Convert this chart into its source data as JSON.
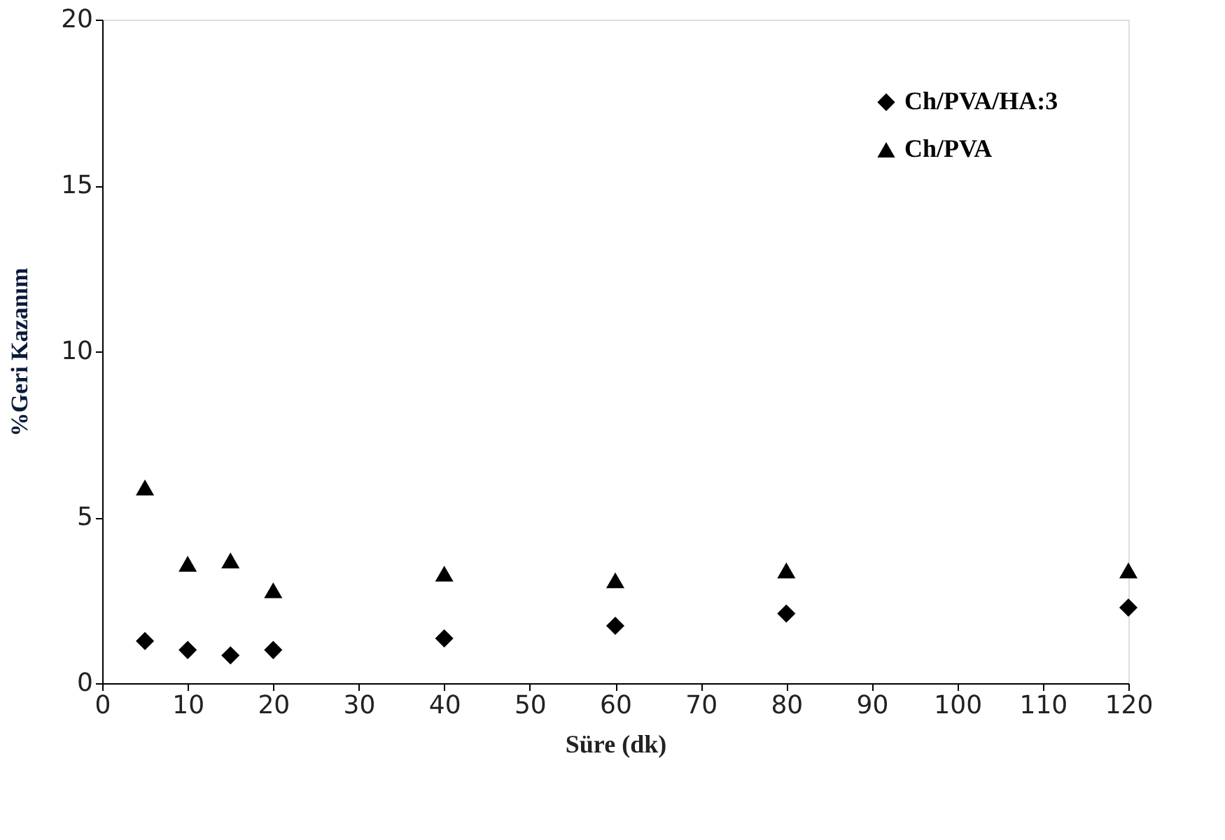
{
  "chart_data": {
    "type": "scatter",
    "xlabel": "Süre (dk)",
    "ylabel": "%Geri Kazanım",
    "x": [
      5,
      10,
      15,
      20,
      40,
      60,
      80,
      120
    ],
    "series": [
      {
        "name": "Ch/PVA/HA:3",
        "color": "#000000",
        "marker": "diamond",
        "values": [
          1.27,
          1.0,
          0.84,
          1.0,
          1.35,
          1.73,
          2.1,
          2.28
        ]
      },
      {
        "name": "Ch/PVA",
        "color": "#000000",
        "marker": "triangle",
        "values": [
          5.9,
          3.6,
          3.7,
          2.8,
          3.3,
          3.1,
          3.4,
          3.4
        ]
      }
    ],
    "xlim": [
      0,
      120
    ],
    "xticks": [
      0,
      10,
      20,
      30,
      40,
      50,
      60,
      70,
      80,
      90,
      100,
      110,
      120
    ],
    "ylim": [
      0,
      20
    ],
    "yticks": [
      0,
      5,
      10,
      15,
      20
    ],
    "grid": false,
    "legend": "top right"
  }
}
